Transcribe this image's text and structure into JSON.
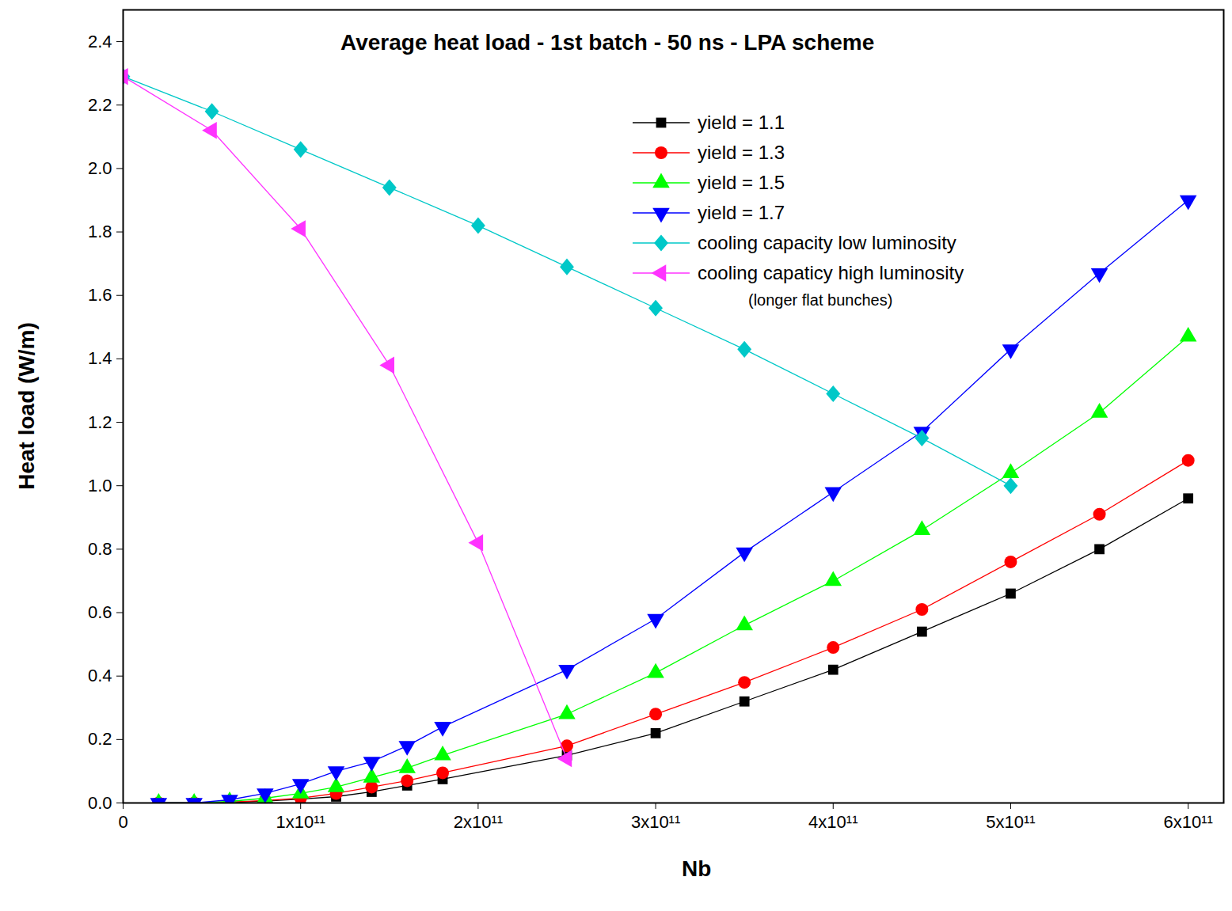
{
  "chart_data": {
    "type": "line",
    "title": "Average heat load - 1st batch - 50 ns - LPA scheme",
    "x_label": "Nb",
    "y_label": "Heat load (W/m)",
    "xlim": [
      0,
      620000000000
    ],
    "xticks": [
      0,
      {
        "value": 100000000000,
        "label": "1x10¹¹"
      },
      {
        "value": 200000000000,
        "label": "2x10¹¹"
      },
      {
        "value": 300000000000,
        "label": "3x10¹¹"
      },
      {
        "value": 400000000000,
        "label": "4x10¹¹"
      },
      {
        "value": 500000000000,
        "label": "5x10¹¹"
      },
      {
        "value": 600000000000,
        "label": "6x10¹¹"
      }
    ],
    "ylim": [
      0,
      2.5
    ],
    "yticks": [
      {
        "value": 0,
        "label": "0.0"
      },
      0.2,
      0.4,
      0.6,
      0.8,
      {
        "value": 1,
        "label": "1.0"
      },
      1.2,
      1.4,
      1.6,
      1.8,
      {
        "value": 2,
        "label": "2.0"
      },
      2.2,
      2.4
    ],
    "grid": false,
    "legend": "upper right",
    "annotations": [
      "(longer flat bunches)"
    ],
    "series": [
      {
        "name": "yield = 1.1",
        "color": "#000000",
        "marker": "square",
        "line_style": "solid",
        "x": [
          20000000000,
          40000000000,
          60000000000,
          80000000000,
          100000000000,
          120000000000,
          140000000000,
          160000000000,
          180000000000,
          250000000000,
          300000000000,
          350000000000,
          400000000000,
          450000000000,
          500000000000,
          550000000000,
          600000000000
        ],
        "values": [
          0,
          0,
          0.002,
          0.006,
          0.012,
          0.02,
          0.035,
          0.055,
          0.075,
          0.15,
          0.22,
          0.32,
          0.42,
          0.54,
          0.66,
          0.8,
          0.96
        ]
      },
      {
        "name": "yield = 1.3",
        "color": "#ff0000",
        "marker": "circle",
        "line_style": "solid",
        "x": [
          20000000000,
          40000000000,
          60000000000,
          80000000000,
          100000000000,
          120000000000,
          140000000000,
          160000000000,
          180000000000,
          250000000000,
          300000000000,
          350000000000,
          400000000000,
          450000000000,
          500000000000,
          550000000000,
          600000000000
        ],
        "values": [
          0,
          0,
          0.003,
          0.008,
          0.015,
          0.03,
          0.05,
          0.07,
          0.095,
          0.18,
          0.28,
          0.38,
          0.49,
          0.61,
          0.76,
          0.91,
          1.08
        ]
      },
      {
        "name": "yield = 1.5",
        "color": "#00ff00",
        "marker": "triangle-up",
        "line_style": "solid",
        "x": [
          20000000000,
          40000000000,
          60000000000,
          80000000000,
          100000000000,
          120000000000,
          140000000000,
          160000000000,
          180000000000,
          250000000000,
          300000000000,
          350000000000,
          400000000000,
          450000000000,
          500000000000,
          550000000000,
          600000000000
        ],
        "values": [
          0,
          0,
          0.005,
          0.015,
          0.03,
          0.05,
          0.08,
          0.11,
          0.15,
          0.28,
          0.41,
          0.56,
          0.7,
          0.86,
          1.04,
          1.23,
          1.47
        ]
      },
      {
        "name": "yield = 1.7",
        "color": "#0000ff",
        "marker": "triangle-down",
        "line_style": "solid",
        "x": [
          20000000000,
          40000000000,
          60000000000,
          80000000000,
          100000000000,
          120000000000,
          140000000000,
          160000000000,
          180000000000,
          250000000000,
          300000000000,
          350000000000,
          400000000000,
          450000000000,
          500000000000,
          550000000000,
          600000000000
        ],
        "values": [
          0,
          0,
          0.01,
          0.03,
          0.06,
          0.1,
          0.13,
          0.18,
          0.24,
          0.42,
          0.58,
          0.79,
          0.98,
          1.17,
          1.43,
          1.67,
          1.9
        ]
      },
      {
        "name": "cooling capacity low luminosity",
        "color": "#00c8c8",
        "marker": "diamond",
        "line_style": "solid",
        "x": [
          0,
          50000000000,
          100000000000,
          150000000000,
          200000000000,
          250000000000,
          300000000000,
          350000000000,
          400000000000,
          450000000000,
          500000000000
        ],
        "values": [
          2.29,
          2.18,
          2.06,
          1.94,
          1.82,
          1.69,
          1.56,
          1.43,
          1.29,
          1.15,
          1.0
        ]
      },
      {
        "name": "cooling capaticy high luminosity",
        "color": "#ff33ff",
        "marker": "triangle-left",
        "line_style": "solid",
        "x": [
          0,
          50000000000,
          100000000000,
          150000000000,
          200000000000,
          250000000000
        ],
        "values": [
          2.29,
          2.12,
          1.81,
          1.38,
          0.82,
          0.14
        ]
      }
    ]
  }
}
